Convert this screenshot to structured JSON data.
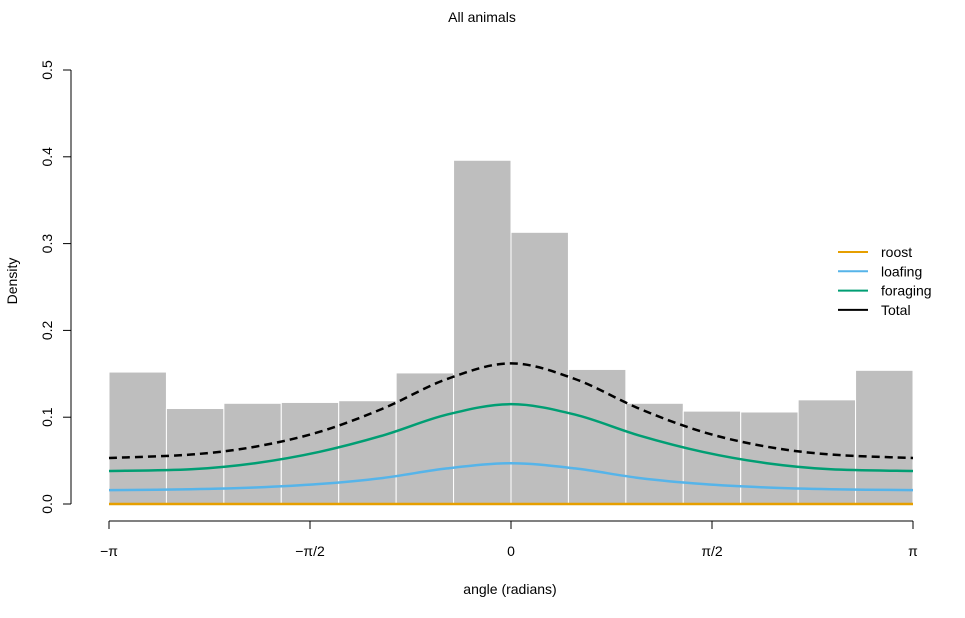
{
  "chart_data": {
    "type": "histogram",
    "title": "All animals",
    "xlabel": "angle (radians)",
    "ylabel": "Density",
    "xlim": [
      -3.14159,
      3.14159
    ],
    "ylim": [
      0,
      0.5
    ],
    "x_ticks": [
      {
        "value": -3.14159,
        "label": "−π"
      },
      {
        "value": -1.5708,
        "label": "−π/2"
      },
      {
        "value": 0,
        "label": "0"
      },
      {
        "value": 1.5708,
        "label": "π/2"
      },
      {
        "value": 3.14159,
        "label": "π"
      }
    ],
    "y_ticks": [
      {
        "value": 0.0,
        "label": "0.0"
      },
      {
        "value": 0.1,
        "label": "0.1"
      },
      {
        "value": 0.2,
        "label": "0.2"
      },
      {
        "value": 0.3,
        "label": "0.3"
      },
      {
        "value": 0.4,
        "label": "0.4"
      },
      {
        "value": 0.5,
        "label": "0.5"
      }
    ],
    "histogram": {
      "bin_edges": [
        -3.14159,
        -2.69279,
        -2.24399,
        -1.79519,
        -1.3464,
        -0.8976,
        -0.4488,
        0,
        0.4488,
        0.8976,
        1.3464,
        1.79519,
        2.24399,
        2.69279,
        3.14159
      ],
      "densities": [
        0.152,
        0.11,
        0.116,
        0.117,
        0.119,
        0.151,
        0.396,
        0.313,
        0.155,
        0.116,
        0.107,
        0.106,
        0.12,
        0.154
      ],
      "color": "#bebebe"
    },
    "series": [
      {
        "name": "roost",
        "color": "#e69f00",
        "dash": false,
        "x": [
          -3.14159,
          3.14159
        ],
        "values": [
          0.0,
          0.0
        ]
      },
      {
        "name": "loafing",
        "color": "#56b4e9",
        "dash": false,
        "x": [
          -3.14159,
          -2.5,
          -2.0,
          -1.5,
          -1.0,
          -0.5,
          0,
          0.5,
          1.0,
          1.5,
          2.0,
          2.5,
          3.14159
        ],
        "values": [
          0.016,
          0.017,
          0.019,
          0.023,
          0.03,
          0.041,
          0.047,
          0.041,
          0.03,
          0.023,
          0.019,
          0.017,
          0.016
        ]
      },
      {
        "name": "foraging",
        "color": "#009e73",
        "dash": false,
        "x": [
          -3.14159,
          -2.5,
          -2.0,
          -1.5,
          -1.0,
          -0.5,
          0,
          0.5,
          1.0,
          1.5,
          2.0,
          2.5,
          3.14159
        ],
        "values": [
          0.038,
          0.04,
          0.047,
          0.06,
          0.079,
          0.103,
          0.115,
          0.103,
          0.079,
          0.06,
          0.047,
          0.04,
          0.038
        ]
      },
      {
        "name": "Total",
        "color": "#000000",
        "dash": true,
        "x": [
          -3.14159,
          -2.5,
          -2.0,
          -1.5,
          -1.0,
          -0.5,
          0,
          0.5,
          1.0,
          1.5,
          2.0,
          2.5,
          3.14159
        ],
        "values": [
          0.053,
          0.057,
          0.066,
          0.083,
          0.11,
          0.144,
          0.162,
          0.144,
          0.11,
          0.083,
          0.066,
          0.057,
          0.053
        ]
      }
    ],
    "legend": {
      "placement": "right",
      "items": [
        {
          "label": "roost",
          "color": "#e69f00"
        },
        {
          "label": "loafing",
          "color": "#56b4e9"
        },
        {
          "label": "foraging",
          "color": "#009e73"
        },
        {
          "label": "Total",
          "color": "#000000"
        }
      ]
    }
  }
}
